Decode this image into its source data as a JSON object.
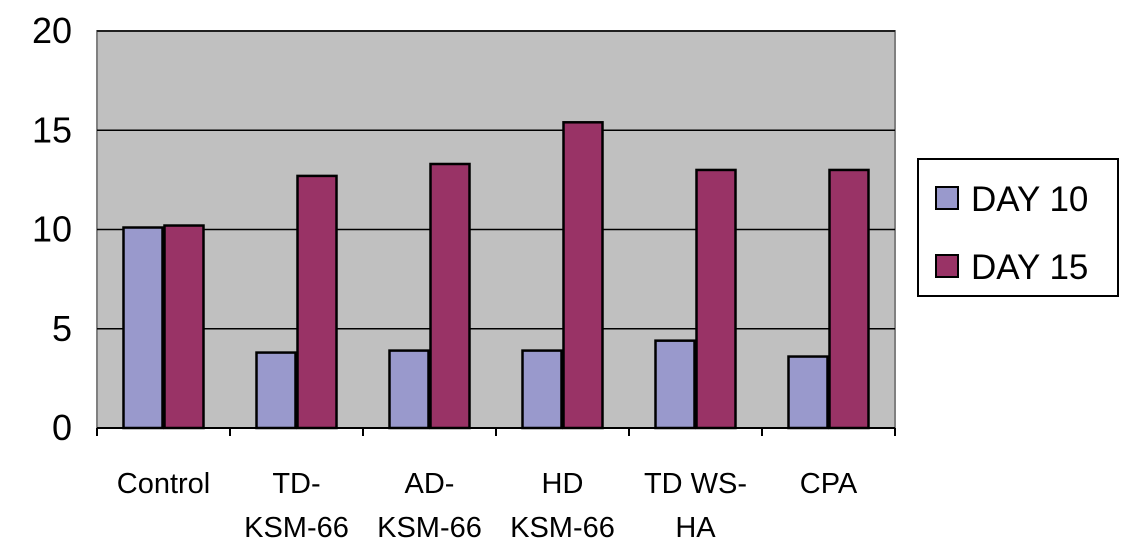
{
  "chart_data": {
    "type": "bar",
    "title": "",
    "xlabel": "",
    "ylabel": "",
    "ylim": [
      0,
      20
    ],
    "yticks": [
      0,
      5,
      10,
      15,
      20
    ],
    "grid": true,
    "legend_position": "right",
    "categories": [
      [
        "Control"
      ],
      [
        "TD-",
        "KSM-66"
      ],
      [
        "AD-",
        "KSM-66"
      ],
      [
        "HD",
        "KSM-66"
      ],
      [
        "TD WS-",
        "HA"
      ],
      [
        "CPA"
      ]
    ],
    "series": [
      {
        "name": "DAY 10",
        "color": "#9999cc",
        "values": [
          10.1,
          3.8,
          3.9,
          3.9,
          4.4,
          3.6
        ]
      },
      {
        "name": "DAY 15",
        "color": "#993366",
        "values": [
          10.2,
          12.7,
          13.3,
          15.4,
          13.0,
          13.0
        ]
      }
    ],
    "plot_background": "#c0c0c0"
  }
}
